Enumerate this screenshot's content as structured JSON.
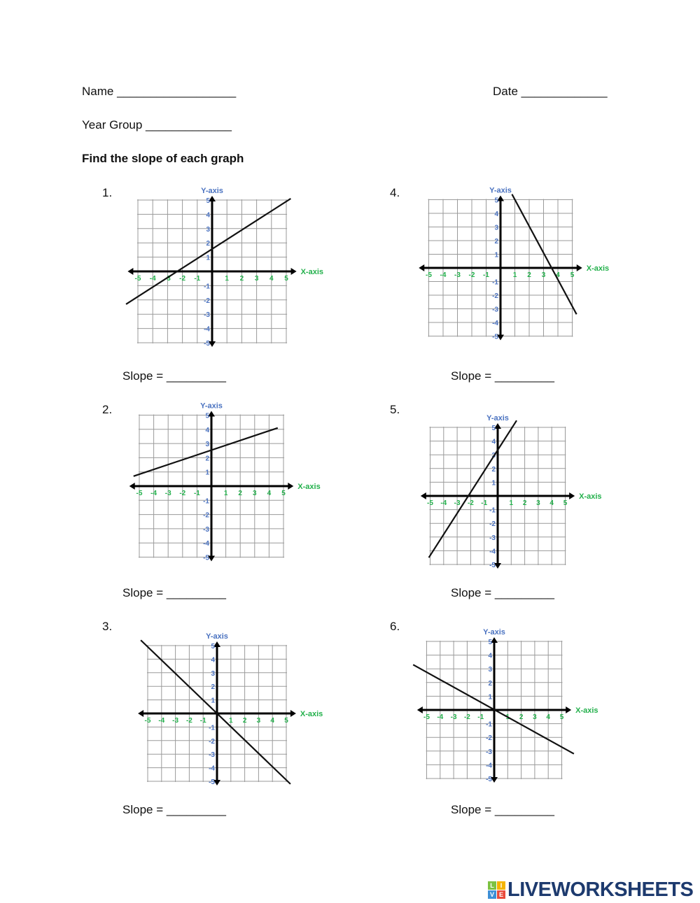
{
  "header": {
    "name_label": "Name __________________",
    "date_label": "Date _____________",
    "year_group_label": "Year Group _____________",
    "instruction": "Find the slope of each graph"
  },
  "slope_label": "Slope = _________",
  "colors": {
    "x_ticks": "#22b04b",
    "y_ticks": "#4a72c0",
    "axis": "#000000",
    "grid": "#9a9a9a"
  },
  "chart_data": [
    {
      "number": "1.",
      "type": "line",
      "xlabel": "X-axis",
      "ylabel": "Y-axis",
      "xlim": [
        -5,
        5
      ],
      "ylim": [
        -5,
        5
      ],
      "grid": true,
      "tick_labels": [
        "-5",
        "-4",
        "-3",
        "-2",
        "-1",
        "1",
        "2",
        "3",
        "4",
        "5"
      ],
      "line": [
        [
          -5.8,
          -2.3
        ],
        [
          5.3,
          5.1
        ]
      ]
    },
    {
      "number": "2.",
      "type": "line",
      "xlabel": "X-axis",
      "ylabel": "Y-axis",
      "xlim": [
        -5,
        5
      ],
      "ylim": [
        -5,
        5
      ],
      "grid": true,
      "tick_labels": [
        "-5",
        "-4",
        "-3",
        "-2",
        "-1",
        "1",
        "2",
        "3",
        "4",
        "5"
      ],
      "line": [
        [
          -5.4,
          0.7
        ],
        [
          4.6,
          4.1
        ]
      ]
    },
    {
      "number": "3.",
      "type": "line",
      "xlabel": "X-axis",
      "ylabel": "Y-axis",
      "xlim": [
        -5,
        5
      ],
      "ylim": [
        -5,
        5
      ],
      "grid": true,
      "tick_labels": [
        "-5",
        "-4",
        "-3",
        "-2",
        "-1",
        "1",
        "2",
        "3",
        "4",
        "5"
      ],
      "line": [
        [
          -5.5,
          5.4
        ],
        [
          5.3,
          -5.2
        ]
      ]
    },
    {
      "number": "4.",
      "type": "line",
      "xlabel": "X-axis",
      "ylabel": "Y-axis",
      "xlim": [
        -5,
        5
      ],
      "ylim": [
        -5,
        5
      ],
      "grid": true,
      "tick_labels": [
        "-5",
        "-4",
        "-3",
        "-2",
        "-1",
        "1",
        "2",
        "3",
        "4",
        "5"
      ],
      "line": [
        [
          0.8,
          5.4
        ],
        [
          5.3,
          -3.4
        ]
      ]
    },
    {
      "number": "5.",
      "type": "line",
      "xlabel": "X-axis",
      "ylabel": "Y-axis",
      "xlim": [
        -5,
        5
      ],
      "ylim": [
        -5,
        5
      ],
      "grid": true,
      "tick_labels": [
        "-5",
        "-4",
        "-3",
        "-2",
        "-1",
        "1",
        "2",
        "3",
        "4",
        "5"
      ],
      "line": [
        [
          -5.1,
          -4.5
        ],
        [
          1.4,
          5.5
        ]
      ]
    },
    {
      "number": "6.",
      "type": "line",
      "xlabel": "X-axis",
      "ylabel": "Y-axis",
      "xlim": [
        -5,
        5
      ],
      "ylim": [
        -5,
        5
      ],
      "grid": true,
      "tick_labels": [
        "-5",
        "-4",
        "-3",
        "-2",
        "-1",
        "1",
        "2",
        "3",
        "4",
        "5"
      ],
      "line": [
        [
          -6,
          3.3
        ],
        [
          5.9,
          -3.2
        ]
      ]
    }
  ],
  "logo": {
    "text": "LIVEWORKSHEETS",
    "badge": [
      "L",
      "I",
      "V",
      "E"
    ]
  }
}
